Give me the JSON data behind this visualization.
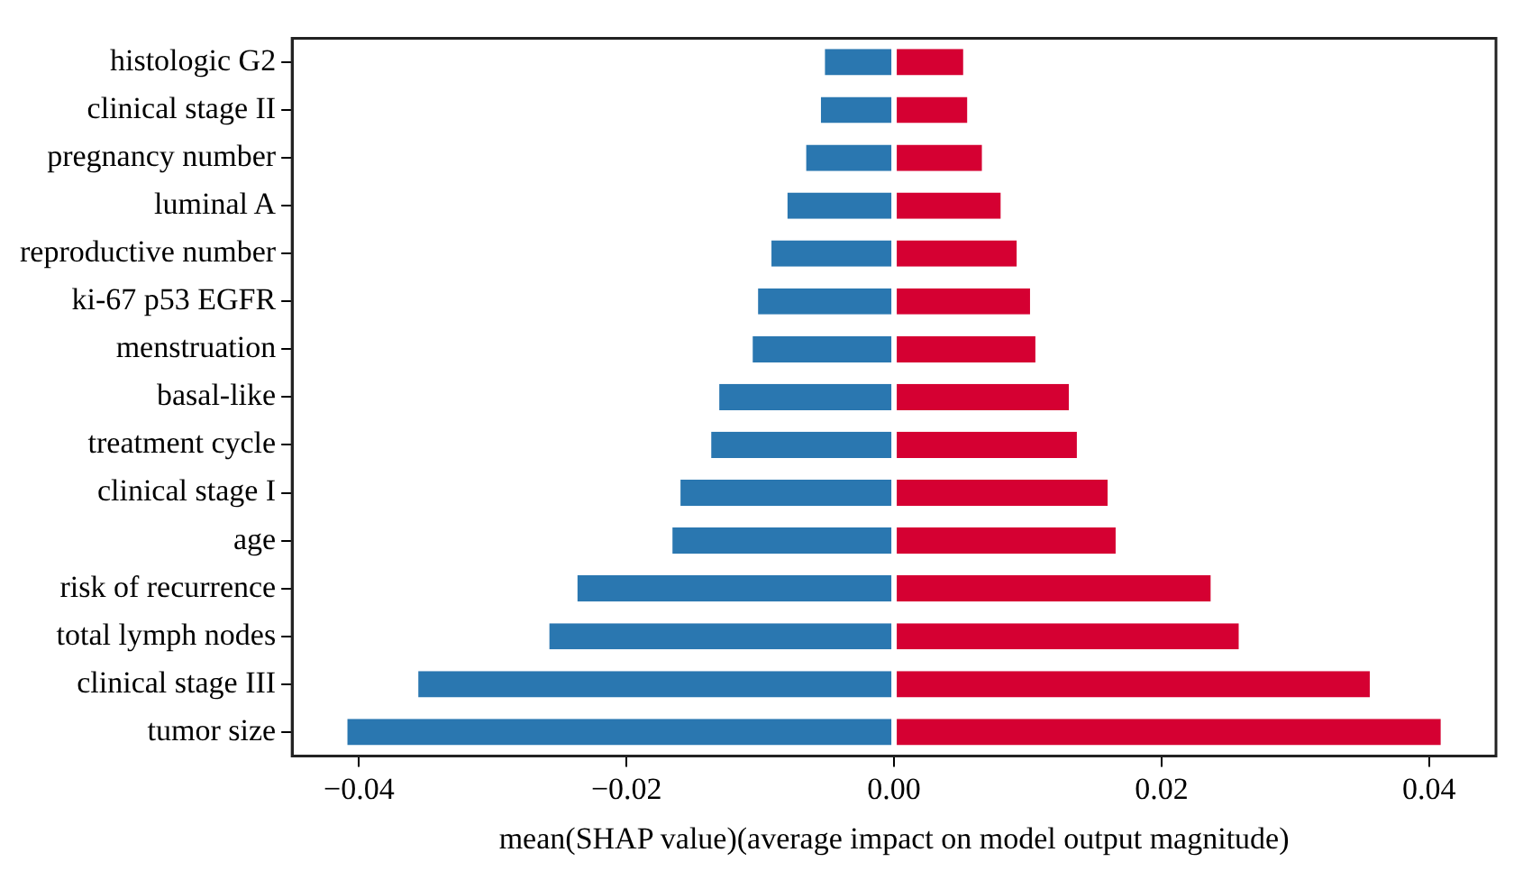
{
  "chart_data": {
    "type": "bar",
    "orientation": "horizontal",
    "stacked": true,
    "xlabel": "mean(SHAP value)(average impact on model output magnitude)",
    "categories": [
      "histologic G2",
      "clinical stage II",
      "pregnancy number",
      "luminal A",
      "reproductive number",
      "ki-67 p53 EGFR",
      "menstruation",
      "basal-like",
      "treatment cycle",
      "clinical stage I",
      "age",
      "risk of recurrence",
      "total lymph nodes",
      "clinical stage III",
      "tumor size"
    ],
    "series": [
      {
        "color": "#2a77b0",
        "values": [
          -0.0053,
          -0.0056,
          -0.0067,
          -0.0081,
          -0.0093,
          -0.0103,
          -0.0107,
          -0.0132,
          -0.0138,
          -0.0161,
          -0.0167,
          -0.0238,
          -0.0259,
          -0.0357,
          -0.041
        ]
      },
      {
        "color": "#d50032",
        "values": [
          0.0053,
          0.0056,
          0.0067,
          0.0081,
          0.0093,
          0.0103,
          0.0107,
          0.0132,
          0.0138,
          0.0161,
          0.0167,
          0.0238,
          0.0259,
          0.0357,
          0.041
        ]
      }
    ],
    "xlim": [
      -0.045,
      0.045
    ],
    "xticks": [
      {
        "value": -0.04,
        "label": "−0.04"
      },
      {
        "value": -0.02,
        "label": "−0.02"
      },
      {
        "value": 0,
        "label": "0.00"
      },
      {
        "value": 0.02,
        "label": "0.02"
      },
      {
        "value": 0.04,
        "label": "0.04"
      }
    ],
    "grid": false,
    "legend": false
  }
}
